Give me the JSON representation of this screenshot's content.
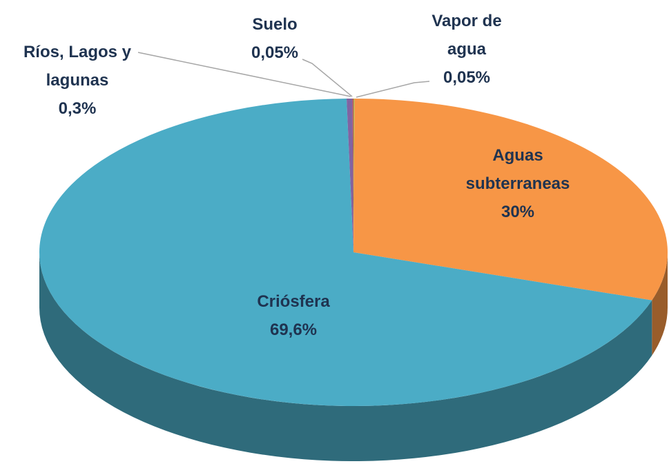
{
  "chart_data": {
    "type": "pie3d",
    "categories": [
      "Vapor de agua",
      "Aguas subterraneas",
      "Criósfera",
      "Ríos, Lagos y lagunas",
      "Suelo"
    ],
    "values": [
      0.05,
      30,
      69.6,
      0.3,
      0.05
    ],
    "value_labels": [
      "0,05%",
      "30%",
      "69,6%",
      "0,3%",
      "0,05%"
    ],
    "colors": [
      "#9bbb59",
      "#f79646",
      "#4bacc6",
      "#8064a2",
      "#c0504d"
    ]
  }
}
